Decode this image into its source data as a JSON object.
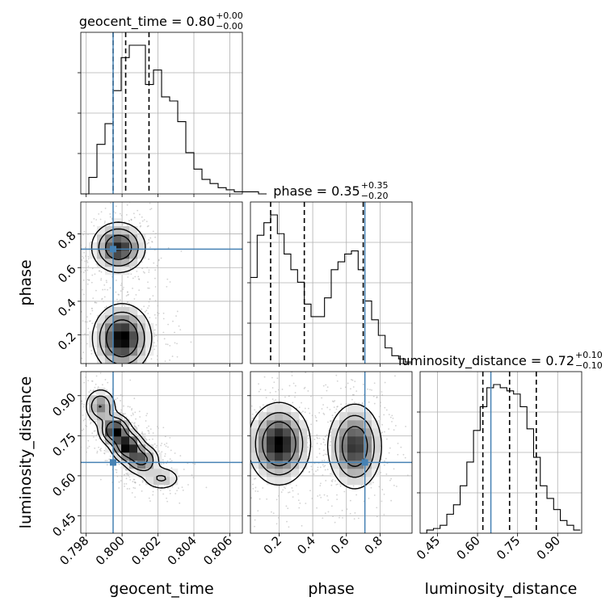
{
  "chart_data": {
    "type": "corner",
    "parameters": [
      "geocent_time",
      "phase",
      "luminosity_distance"
    ],
    "truths": {
      "geocent_time": 0.7995,
      "phase": 0.71,
      "luminosity_distance": 0.65
    },
    "colors": {
      "truth": "#4682b4",
      "hist": "#000000",
      "grid": "#b0b0b0",
      "contour": "#000000",
      "points": "#b4b4b4"
    },
    "titles": [
      {
        "param": "geocent_time",
        "label": "geocent_time = 0.80",
        "plus": "+0.00",
        "minus": "−0.00"
      },
      {
        "param": "phase",
        "label": "phase = 0.35",
        "plus": "+0.35",
        "minus": "−0.20"
      },
      {
        "param": "luminosity_distance",
        "label": "luminosity_distance = 0.72",
        "plus": "+0.10",
        "minus": "−0.10"
      }
    ],
    "axis_labels": {
      "x": [
        "geocent_time",
        "phase",
        "luminosity_distance"
      ],
      "y": [
        "phase",
        "luminosity_distance"
      ]
    },
    "ranges": {
      "geocent_time": [
        0.7977,
        0.8067
      ],
      "phase": [
        0.03,
        0.99
      ],
      "luminosity_distance": [
        0.385,
        0.99
      ]
    },
    "ticks": {
      "geocent_time": [
        {
          "v": 0.798,
          "label": "0.798"
        },
        {
          "v": 0.8,
          "label": "0.800"
        },
        {
          "v": 0.802,
          "label": "0.802"
        },
        {
          "v": 0.804,
          "label": "0.804"
        },
        {
          "v": 0.806,
          "label": "0.806"
        }
      ],
      "phase": [
        {
          "v": 0.2,
          "label": "0.2"
        },
        {
          "v": 0.4,
          "label": "0.4"
        },
        {
          "v": 0.6,
          "label": "0.6"
        },
        {
          "v": 0.8,
          "label": "0.8"
        }
      ],
      "luminosity_distance": [
        {
          "v": 0.45,
          "label": "0.45"
        },
        {
          "v": 0.6,
          "label": "0.60"
        },
        {
          "v": 0.75,
          "label": "0.75"
        },
        {
          "v": 0.9,
          "label": "0.90"
        }
      ]
    },
    "quantiles": {
      "geocent_time": [
        0.7995,
        0.8002,
        0.8015
      ],
      "phase": [
        0.15,
        0.35,
        0.7
      ],
      "luminosity_distance": [
        0.62,
        0.72,
        0.82
      ]
    },
    "histograms": {
      "geocent_time": {
        "start": 0.7977,
        "width": 0.00045,
        "counts": [
          0,
          8,
          24,
          34,
          50,
          66,
          72,
          72,
          53,
          60,
          47,
          45,
          35,
          20,
          12,
          7,
          5,
          3,
          2,
          1,
          1,
          1,
          0
        ]
      },
      "phase": {
        "start": 0.03,
        "width": 0.04,
        "counts": [
          55,
          82,
          90,
          95,
          83,
          70,
          60,
          52,
          38,
          30,
          30,
          42,
          60,
          65,
          70,
          72,
          60,
          40,
          28,
          18,
          10,
          5,
          3,
          1
        ]
      },
      "luminosity_distance": {
        "start": 0.385,
        "width": 0.025,
        "counts": [
          0,
          2,
          3,
          5,
          12,
          18,
          30,
          45,
          65,
          80,
          92,
          94,
          92,
          90,
          88,
          80,
          66,
          48,
          30,
          22,
          15,
          8,
          5,
          2
        ]
      }
    },
    "density": [
      {
        "xparam": "geocent_time",
        "yparam": "phase",
        "blobs": [
          {
            "x": 0.7998,
            "y": 0.72,
            "sx": 0.00075,
            "sy": 0.075,
            "w": 1.0
          },
          {
            "x": 0.8,
            "y": 0.18,
            "sx": 0.0008,
            "sy": 0.1,
            "w": 1.15
          }
        ]
      },
      {
        "xparam": "geocent_time",
        "yparam": "luminosity_distance",
        "blobs": [
          {
            "x": 0.7988,
            "y": 0.86,
            "sx": 0.00045,
            "sy": 0.035,
            "w": 0.6
          },
          {
            "x": 0.7996,
            "y": 0.77,
            "sx": 0.00045,
            "sy": 0.03,
            "w": 1.0
          },
          {
            "x": 0.8003,
            "y": 0.71,
            "sx": 0.00045,
            "sy": 0.03,
            "w": 1.0
          },
          {
            "x": 0.8011,
            "y": 0.66,
            "sx": 0.0005,
            "sy": 0.03,
            "w": 0.7
          },
          {
            "x": 0.8022,
            "y": 0.59,
            "sx": 0.0006,
            "sy": 0.025,
            "w": 0.35
          }
        ]
      },
      {
        "xparam": "phase",
        "yparam": "luminosity_distance",
        "blobs": [
          {
            "x": 0.2,
            "y": 0.72,
            "sx": 0.09,
            "sy": 0.075,
            "w": 1.0
          },
          {
            "x": 0.65,
            "y": 0.71,
            "sx": 0.08,
            "sy": 0.08,
            "w": 0.85
          }
        ]
      }
    ]
  }
}
